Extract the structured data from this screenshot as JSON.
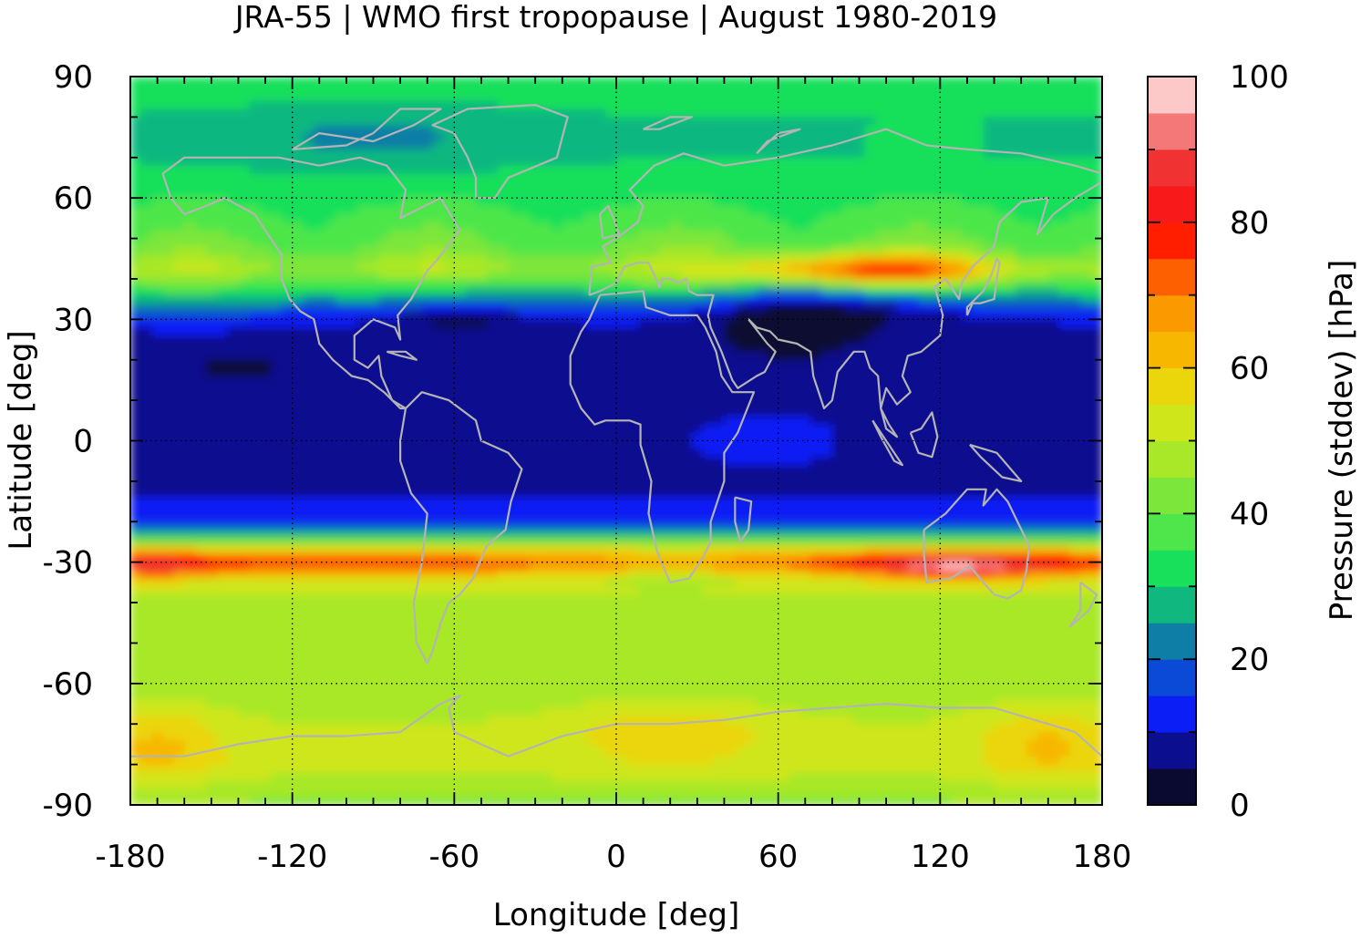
{
  "chart_data": {
    "type": "heatmap",
    "title": "JRA-55 | WMO first tropopause | August 1980-2019",
    "xlabel": "Longitude [deg]",
    "ylabel": "Latitude [deg]",
    "xlim": [
      -180,
      180
    ],
    "ylim": [
      -90,
      90
    ],
    "x_ticks": [
      "-180",
      "-120",
      "-60",
      "0",
      "60",
      "120",
      "180"
    ],
    "x_tick_values": [
      -180,
      -120,
      -60,
      0,
      60,
      120,
      180
    ],
    "y_ticks": [
      "90",
      "60",
      "30",
      "0",
      "-30",
      "-60",
      "-90"
    ],
    "y_tick_values": [
      90,
      60,
      30,
      0,
      -30,
      -60,
      -90
    ],
    "grid": "dotted at labeled ticks",
    "coastlines": true,
    "coastline_color": "#b4b4b4",
    "colorbar": {
      "label": "Pressure (stddev) [hPa]",
      "range": [
        0,
        100
      ],
      "ticks": [
        "0",
        "20",
        "40",
        "60",
        "80",
        "100"
      ],
      "tick_values": [
        0,
        20,
        40,
        60,
        80,
        100
      ],
      "step": 5,
      "colors": [
        "#0a0a30",
        "#0a0e8f",
        "#0a1ef5",
        "#0a4ad7",
        "#0e7ea6",
        "#10b880",
        "#19e05a",
        "#4ee64a",
        "#7de63a",
        "#a8e828",
        "#cfe61a",
        "#ebd60c",
        "#f7b700",
        "#fb9a00",
        "#fd6000",
        "#ff1e00",
        "#f81a1a",
        "#f03232",
        "#f57878",
        "#fcc8c8"
      ]
    },
    "zonal_profile_approx": {
      "latitudes": [
        -90,
        -80,
        -70,
        -60,
        -50,
        -40,
        -34,
        -32,
        -30,
        -26,
        -22,
        -18,
        -10,
        0,
        10,
        20,
        26,
        30,
        36,
        42,
        48,
        60,
        70,
        80,
        90
      ],
      "values": [
        44,
        52,
        50,
        46,
        48,
        48,
        54,
        70,
        78,
        52,
        18,
        12,
        8,
        8,
        8,
        8,
        9,
        12,
        30,
        48,
        40,
        34,
        30,
        30,
        34
      ]
    }
  }
}
